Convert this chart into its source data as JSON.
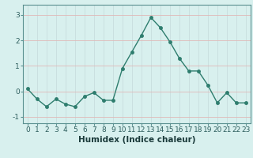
{
  "x": [
    0,
    1,
    2,
    3,
    4,
    5,
    6,
    7,
    8,
    9,
    10,
    11,
    12,
    13,
    14,
    15,
    16,
    17,
    18,
    19,
    20,
    21,
    22,
    23
  ],
  "y": [
    0.1,
    -0.3,
    -0.6,
    -0.3,
    -0.5,
    -0.6,
    -0.2,
    -0.05,
    -0.35,
    -0.35,
    0.9,
    1.55,
    2.2,
    2.9,
    2.5,
    1.95,
    1.3,
    0.8,
    0.8,
    0.25,
    -0.45,
    -0.05,
    -0.45,
    -0.45
  ],
  "line_color": "#2e7d6e",
  "marker": "o",
  "markersize": 2.5,
  "linewidth": 1.0,
  "xlabel": "Humidex (Indice chaleur)",
  "xlim": [
    -0.5,
    23.5
  ],
  "ylim": [
    -1.25,
    3.4
  ],
  "yticks": [
    -1,
    0,
    1,
    2,
    3
  ],
  "xticks": [
    0,
    1,
    2,
    3,
    4,
    5,
    6,
    7,
    8,
    9,
    10,
    11,
    12,
    13,
    14,
    15,
    16,
    17,
    18,
    19,
    20,
    21,
    22,
    23
  ],
  "bg_color": "#d8f0ee",
  "xgrid_color": "#c8dede",
  "ygrid_color": "#e0b8b8",
  "tick_fontsize": 6.5,
  "xlabel_fontsize": 7.5
}
